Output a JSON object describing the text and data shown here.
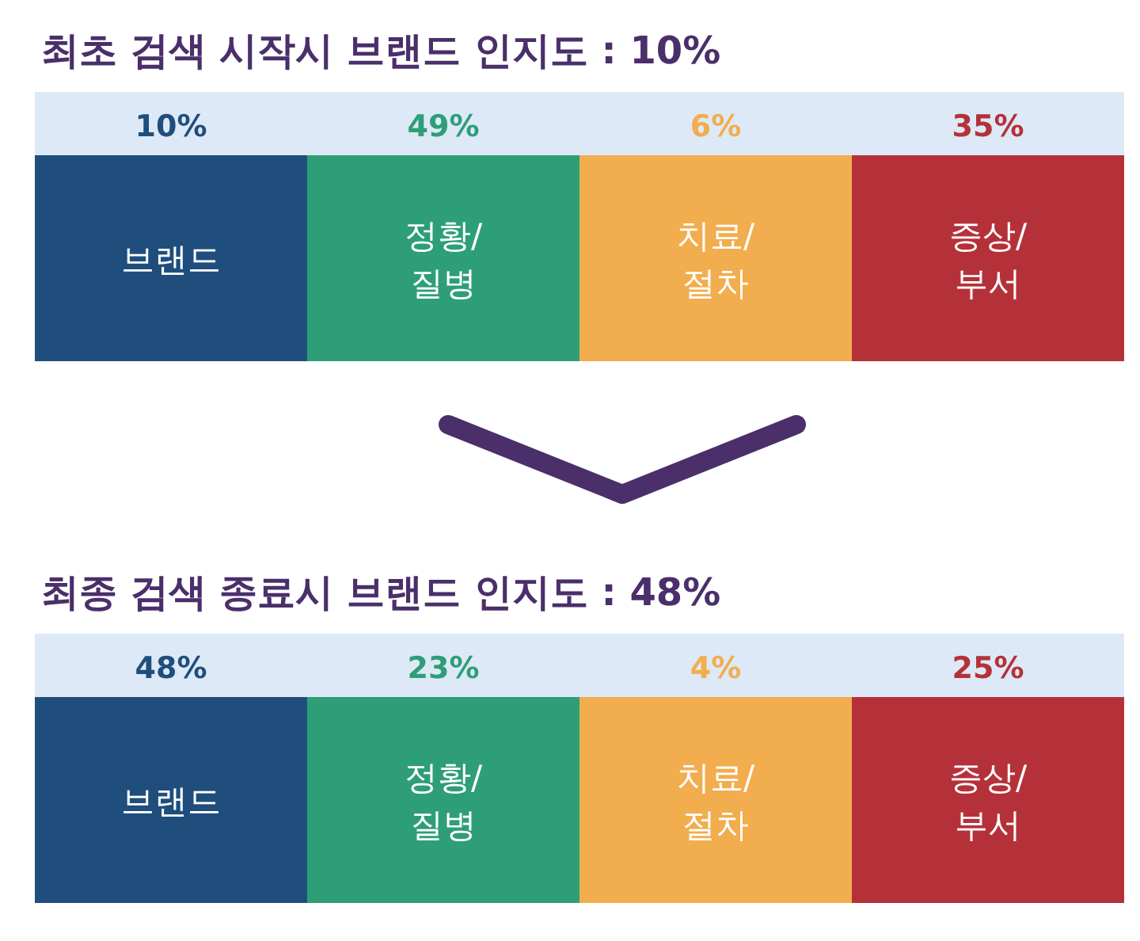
{
  "chart_data": [
    {
      "type": "other",
      "title": "최초 검색 시작시 브랜드 인지도 : 10%",
      "categories": [
        "브랜드",
        "정황/질병",
        "치료/절차",
        "증상/부서"
      ],
      "values": [
        10,
        49,
        6,
        35
      ],
      "value_labels": [
        "10%",
        "49%",
        "6%",
        "35%"
      ],
      "colors": [
        "#1f4e7d",
        "#2e9e78",
        "#f2ad4e",
        "#b5313a"
      ]
    },
    {
      "type": "other",
      "title": "최종 검색 종료시 브랜드 인지도 : 48%",
      "categories": [
        "브랜드",
        "정황/질병",
        "치료/절차",
        "증상/부서"
      ],
      "values": [
        48,
        23,
        4,
        25
      ],
      "value_labels": [
        "48%",
        "23%",
        "4%",
        "25%"
      ],
      "colors": [
        "#1f4e7d",
        "#2e9e78",
        "#f2ad4e",
        "#b5313a"
      ]
    }
  ]
}
